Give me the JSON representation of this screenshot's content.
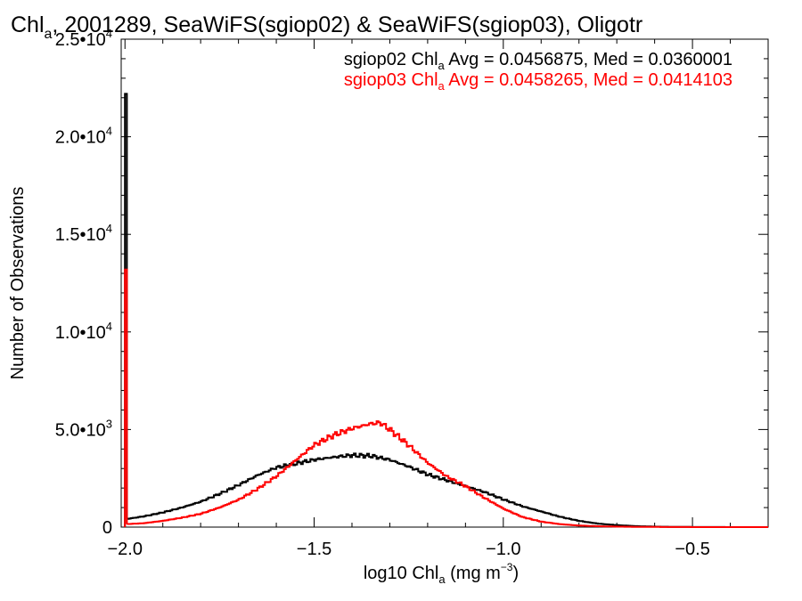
{
  "chart_data": {
    "type": "line",
    "title_prefix": "Chl",
    "title_sub": "a",
    "title_rest": ", 2001289, SeaWiFS(sgiop02) & SeaWiFS(sgiop03), Oligotr",
    "xlabel_prefix": "log10 Chl",
    "xlabel_sub": "a",
    "xlabel_unit": " (mg m",
    "xlabel_sup": "−3",
    "xlabel_end": ")",
    "ylabel": "Number of Observations",
    "xlim": [
      -2.01,
      -0.3
    ],
    "ylim": [
      0,
      25000
    ],
    "x_ticks": [
      {
        "value": -2.0,
        "label": "−2.0"
      },
      {
        "value": -1.5,
        "label": "−1.5"
      },
      {
        "value": -1.0,
        "label": "−1.0"
      },
      {
        "value": -0.5,
        "label": "−0.5"
      }
    ],
    "y_ticks": [
      {
        "value": 0,
        "mantissa": "0",
        "exp": ""
      },
      {
        "value": 5000,
        "mantissa": "5.0•10",
        "exp": "3"
      },
      {
        "value": 10000,
        "mantissa": "1.0•10",
        "exp": "4"
      },
      {
        "value": 15000,
        "mantissa": "1.5•10",
        "exp": "4"
      },
      {
        "value": 20000,
        "mantissa": "2.0•10",
        "exp": "4"
      },
      {
        "value": 25000,
        "mantissa": "2.5•10",
        "exp": "4"
      }
    ],
    "legend": [
      {
        "prefix": "sgiop02 Chl",
        "sub": "a",
        "rest": " Avg = 0.0456875, Med = 0.0360001",
        "color": "#000000"
      },
      {
        "prefix": "sgiop03 Chl",
        "sub": "a",
        "rest": " Avg = 0.0458265, Med = 0.0414103",
        "color": "#ff0000"
      }
    ],
    "series": [
      {
        "color": "#000000",
        "spike": {
          "x": -2.0,
          "value": 22200
        },
        "points": [
          [
            -2.0,
            400
          ],
          [
            -1.95,
            550
          ],
          [
            -1.9,
            750
          ],
          [
            -1.85,
            1000
          ],
          [
            -1.8,
            1300
          ],
          [
            -1.75,
            1700
          ],
          [
            -1.7,
            2150
          ],
          [
            -1.65,
            2650
          ],
          [
            -1.6,
            3050
          ],
          [
            -1.55,
            3250
          ],
          [
            -1.5,
            3450
          ],
          [
            -1.45,
            3580
          ],
          [
            -1.4,
            3680
          ],
          [
            -1.35,
            3650
          ],
          [
            -1.3,
            3450
          ],
          [
            -1.25,
            3100
          ],
          [
            -1.2,
            2700
          ],
          [
            -1.15,
            2400
          ],
          [
            -1.1,
            2100
          ],
          [
            -1.05,
            1800
          ],
          [
            -1.0,
            1420
          ],
          [
            -0.95,
            1070
          ],
          [
            -0.9,
            800
          ],
          [
            -0.85,
            530
          ],
          [
            -0.8,
            320
          ],
          [
            -0.75,
            180
          ],
          [
            -0.7,
            100
          ],
          [
            -0.65,
            50
          ],
          [
            -0.6,
            25
          ],
          [
            -0.55,
            12
          ],
          [
            -0.5,
            6
          ],
          [
            -0.45,
            3
          ],
          [
            -0.4,
            2
          ],
          [
            -0.35,
            1
          ],
          [
            -0.3,
            0
          ]
        ]
      },
      {
        "color": "#ff0000",
        "spike": {
          "x": -2.0,
          "value": 13200
        },
        "points": [
          [
            -2.0,
            150
          ],
          [
            -1.95,
            200
          ],
          [
            -1.9,
            320
          ],
          [
            -1.85,
            480
          ],
          [
            -1.8,
            680
          ],
          [
            -1.75,
            1000
          ],
          [
            -1.7,
            1400
          ],
          [
            -1.65,
            1950
          ],
          [
            -1.6,
            2600
          ],
          [
            -1.55,
            3400
          ],
          [
            -1.5,
            4200
          ],
          [
            -1.45,
            4700
          ],
          [
            -1.4,
            5050
          ],
          [
            -1.35,
            5300
          ],
          [
            -1.325,
            5350
          ],
          [
            -1.3,
            5000
          ],
          [
            -1.25,
            4200
          ],
          [
            -1.2,
            3300
          ],
          [
            -1.15,
            2600
          ],
          [
            -1.1,
            2100
          ],
          [
            -1.05,
            1500
          ],
          [
            -1.0,
            950
          ],
          [
            -0.95,
            520
          ],
          [
            -0.9,
            280
          ],
          [
            -0.85,
            150
          ],
          [
            -0.8,
            80
          ],
          [
            -0.75,
            45
          ],
          [
            -0.7,
            25
          ],
          [
            -0.65,
            14
          ],
          [
            -0.6,
            8
          ],
          [
            -0.55,
            4
          ],
          [
            -0.5,
            2
          ],
          [
            -0.45,
            1
          ],
          [
            -0.4,
            0
          ],
          [
            -0.3,
            0
          ]
        ]
      }
    ]
  }
}
